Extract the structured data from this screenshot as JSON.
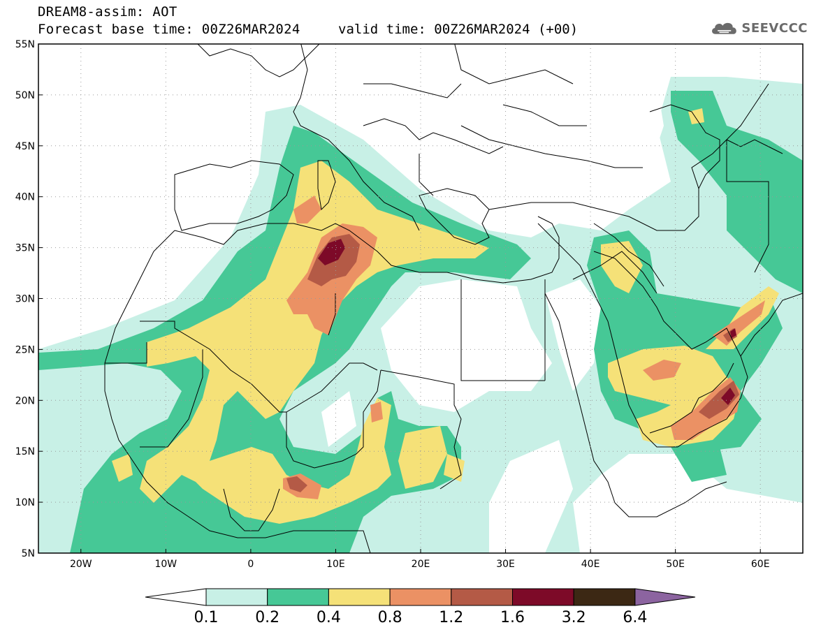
{
  "title": {
    "line1": "DREAM8-assim: AOT",
    "base": "Forecast base time: 00Z26MAR2024",
    "valid": "valid time: 00Z26MAR2024 (+00)"
  },
  "logo": {
    "text": "SEEVCCC",
    "icon": "cloud-icon"
  },
  "map": {
    "lon_range": [
      -25,
      65
    ],
    "lat_range": [
      5,
      55
    ],
    "lat_ticks": [
      {
        "value": 55,
        "label": "55N"
      },
      {
        "value": 50,
        "label": "50N"
      },
      {
        "value": 45,
        "label": "45N"
      },
      {
        "value": 40,
        "label": "40N"
      },
      {
        "value": 35,
        "label": "35N"
      },
      {
        "value": 30,
        "label": "30N"
      },
      {
        "value": 25,
        "label": "25N"
      },
      {
        "value": 20,
        "label": "20N"
      },
      {
        "value": 15,
        "label": "15N"
      },
      {
        "value": 10,
        "label": "10N"
      },
      {
        "value": 5,
        "label": "5N"
      }
    ],
    "lon_ticks": [
      {
        "value": -20,
        "label": "20W"
      },
      {
        "value": -10,
        "label": "10W"
      },
      {
        "value": 0,
        "label": "0"
      },
      {
        "value": 10,
        "label": "10E"
      },
      {
        "value": 20,
        "label": "20E"
      },
      {
        "value": 30,
        "label": "30E"
      },
      {
        "value": 40,
        "label": "40E"
      },
      {
        "value": 50,
        "label": "50E"
      },
      {
        "value": 60,
        "label": "60E"
      }
    ],
    "grid": true,
    "field": "AOT"
  },
  "colorbar": {
    "levels": [
      "0.1",
      "0.2",
      "0.4",
      "0.8",
      "1.2",
      "1.6",
      "3.2",
      "6.4"
    ],
    "colors": [
      "#ffffff",
      "#c8f0e6",
      "#46c896",
      "#f5e178",
      "#eb9164",
      "#b45a46",
      "#7d0a28",
      "#3c2814",
      "#8c64a0"
    ]
  }
}
